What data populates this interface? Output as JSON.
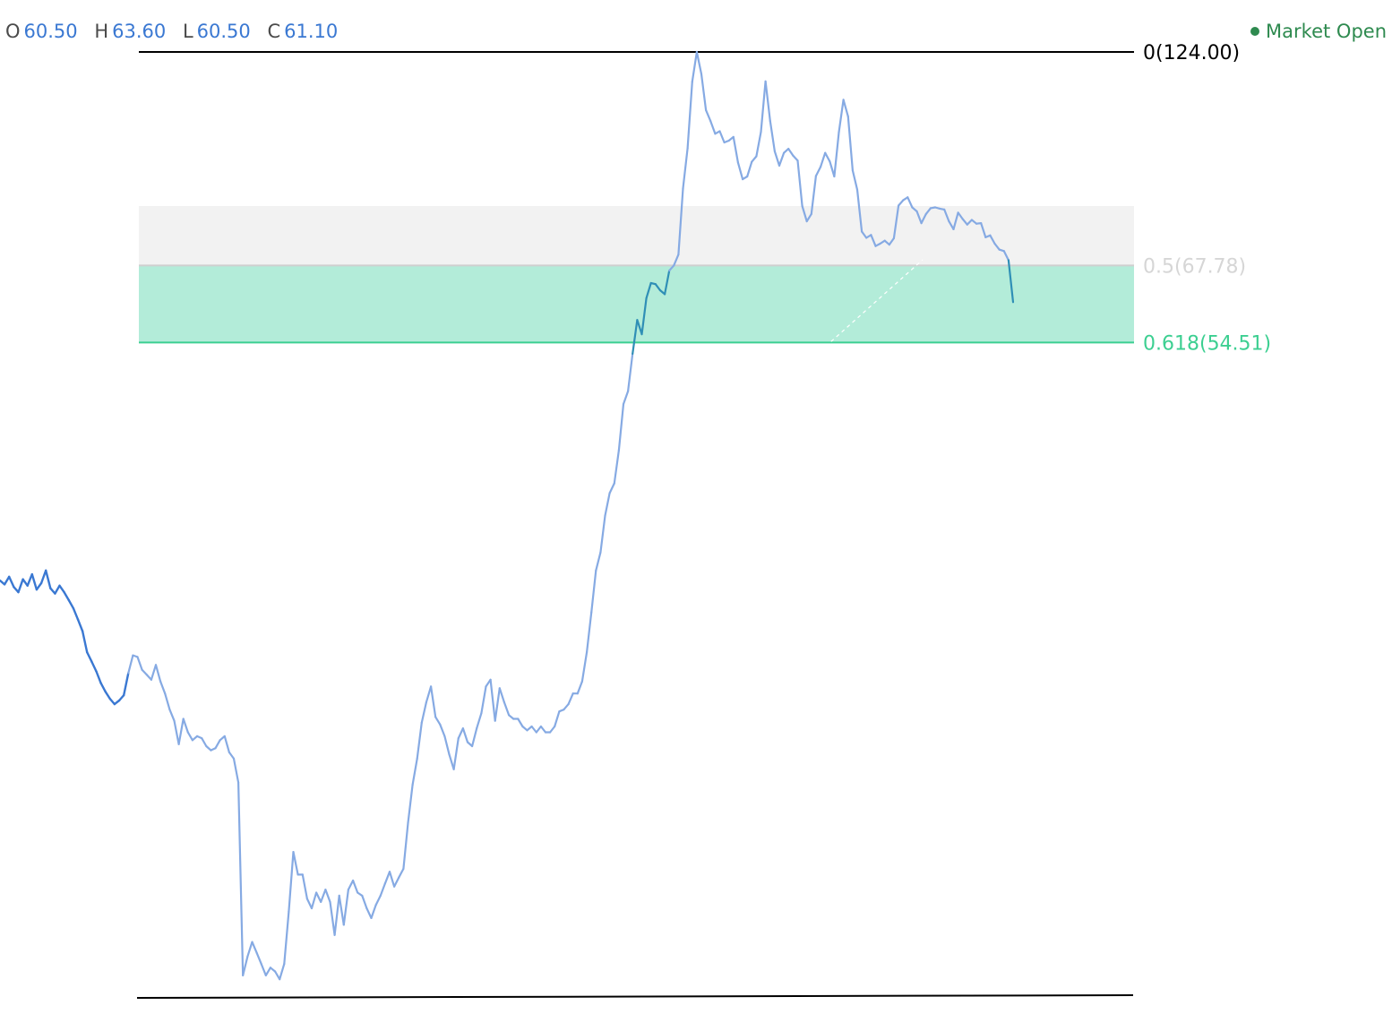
{
  "ohlc": {
    "open_label": "O",
    "open": "60.50",
    "high_label": "H",
    "high": "63.60",
    "low_label": "L",
    "low": "60.50",
    "close_label": "C",
    "close": "61.10",
    "value_color": "#3a78d2"
  },
  "market_status": {
    "label": "Market Open",
    "color": "#2e8a4f",
    "icon": "status-dot-icon"
  },
  "colors": {
    "line_dark": "#3a78d2",
    "line_light": "#86aae3",
    "line_in_zone": "#2f8fb6",
    "zone_gray": "#f2f2f2",
    "zone_green": "#b3ecd9",
    "level_black": "#000000",
    "level_gray": "#cfcfcf",
    "level_green": "#3ccf91",
    "label_gray": "#d6d6d6",
    "label_green": "#3ccf91"
  },
  "chart_data": {
    "type": "line",
    "title": "",
    "xlabel": "",
    "ylabel": "",
    "grid": false,
    "y_scale": "log",
    "ylim": [
      8.56,
      124
    ],
    "fib_levels": [
      {
        "ratio": "0",
        "price": "124.00",
        "label": "0(124.00)",
        "color": "#000000"
      },
      {
        "ratio": "0.5",
        "price": "67.78",
        "label": "0.5(67.78)",
        "color": "#d6d6d6"
      },
      {
        "ratio": "0.618",
        "price": "54.51",
        "label": "0.618(54.51)",
        "color": "#3ccf91"
      }
    ],
    "fib_zones": [
      {
        "from": 80.2,
        "to": 67.78,
        "color": "#f2f2f2"
      },
      {
        "from": 67.78,
        "to": 54.51,
        "color": "#b3ecd9"
      }
    ],
    "series": [
      {
        "values": [
          27.8,
          27.5,
          28.1,
          27.3,
          26.9,
          27.9,
          27.4,
          28.3,
          27.1,
          27.6,
          28.6,
          27.2,
          26.8,
          27.4,
          26.9,
          26.3,
          25.7,
          24.9,
          24.1,
          22.7,
          22.1,
          21.5,
          20.8,
          20.3,
          19.9,
          19.6,
          19.8,
          20.1,
          21.4,
          22.5,
          22.4,
          21.6,
          21.3,
          21.0,
          21.9,
          20.9,
          20.2,
          19.3,
          18.7,
          17.5,
          18.8,
          18.1,
          17.7,
          17.9,
          17.8,
          17.4,
          17.2,
          17.3,
          17.7,
          17.9,
          17.1,
          16.8,
          15.7,
          9.1,
          9.6,
          10.0,
          9.7,
          9.4,
          9.1,
          9.3,
          9.2,
          9.0,
          9.4,
          10.9,
          12.9,
          12.1,
          12.1,
          11.3,
          11.0,
          11.5,
          11.2,
          11.6,
          11.2,
          10.2,
          11.4,
          10.5,
          11.6,
          11.9,
          11.5,
          11.4,
          11.0,
          10.7,
          11.1,
          11.4,
          11.8,
          12.2,
          11.7,
          12.0,
          12.3,
          14.0,
          15.6,
          16.8,
          18.6,
          19.7,
          20.6,
          18.9,
          18.5,
          17.9,
          17.0,
          16.3,
          17.8,
          18.3,
          17.6,
          17.4,
          18.3,
          19.1,
          20.6,
          21.0,
          18.7,
          20.5,
          19.7,
          19.0,
          18.8,
          18.8,
          18.4,
          18.2,
          18.4,
          18.1,
          18.4,
          18.1,
          18.1,
          18.4,
          19.2,
          19.3,
          19.6,
          20.2,
          20.2,
          20.9,
          22.7,
          25.4,
          28.6,
          30.1,
          33.4,
          35.6,
          36.6,
          40.2,
          45.8,
          47.5,
          52.8,
          58.1,
          55.8,
          61.8,
          64.5,
          64.3,
          63.2,
          62.5,
          66.8,
          67.8,
          69.9,
          84.3,
          94.4,
          114.0,
          124.0,
          116.5,
          105.2,
          102.0,
          98.4,
          99.1,
          96.0,
          96.5,
          97.5,
          90.7,
          86.5,
          87.2,
          90.9,
          92.3,
          98.9,
          114.1,
          102.0,
          93.6,
          89.9,
          93.2,
          94.3,
          92.5,
          91.2,
          80.2,
          76.8,
          78.4,
          87.3,
          89.6,
          93.2,
          91.0,
          87.2,
          98.8,
          108.3,
          103.3,
          88.7,
          84.0,
          74.6,
          73.3,
          73.9,
          71.6,
          72.1,
          72.7,
          71.9,
          73.2,
          80.3,
          81.5,
          82.2,
          79.9,
          79.0,
          76.4,
          78.4,
          79.7,
          79.9,
          79.6,
          79.4,
          76.8,
          75.1,
          78.7,
          77.3,
          76.1,
          77.1,
          76.3,
          76.4,
          73.4,
          73.8,
          72.1,
          70.9,
          70.6,
          68.8,
          61.1
        ]
      }
    ]
  }
}
